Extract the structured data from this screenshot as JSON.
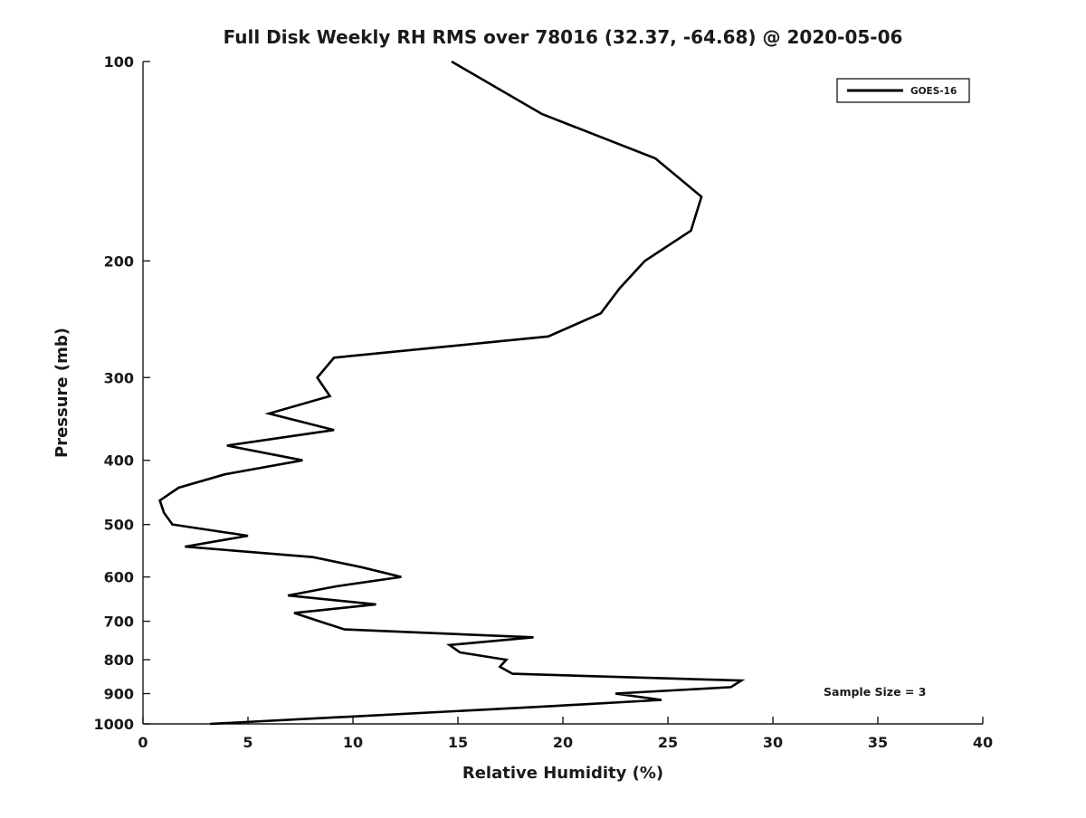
{
  "chart_data": {
    "type": "line",
    "title": "Full Disk Weekly RH RMS over 78016 (32.37, -64.68) @ 2020-05-06",
    "xlabel": "Relative Humidity (%)",
    "ylabel": "Pressure (mb)",
    "xlim": [
      0,
      40
    ],
    "ylim": [
      100,
      1000
    ],
    "x_ticks": [
      0,
      5,
      10,
      15,
      20,
      25,
      30,
      35,
      40
    ],
    "y_ticks": [
      100,
      200,
      300,
      400,
      500,
      600,
      700,
      800,
      900,
      1000
    ],
    "y_scale": "log",
    "y_inverted": true,
    "grid": false,
    "legend_position": "top-right",
    "line_color": "#000000",
    "line_width": 2.6,
    "series": [
      {
        "name": "GOES-16",
        "color": "#000000",
        "points": [
          {
            "pressure": 100,
            "rh": 14.7
          },
          {
            "pressure": 120,
            "rh": 19.0
          },
          {
            "pressure": 140,
            "rh": 24.4
          },
          {
            "pressure": 160,
            "rh": 26.6
          },
          {
            "pressure": 180,
            "rh": 26.1
          },
          {
            "pressure": 200,
            "rh": 23.9
          },
          {
            "pressure": 220,
            "rh": 22.7
          },
          {
            "pressure": 240,
            "rh": 21.8
          },
          {
            "pressure": 260,
            "rh": 19.3
          },
          {
            "pressure": 280,
            "rh": 9.1
          },
          {
            "pressure": 300,
            "rh": 8.3
          },
          {
            "pressure": 320,
            "rh": 8.9
          },
          {
            "pressure": 340,
            "rh": 6.0
          },
          {
            "pressure": 360,
            "rh": 9.1
          },
          {
            "pressure": 380,
            "rh": 4.0
          },
          {
            "pressure": 400,
            "rh": 7.6
          },
          {
            "pressure": 420,
            "rh": 3.9
          },
          {
            "pressure": 440,
            "rh": 1.7
          },
          {
            "pressure": 460,
            "rh": 0.8
          },
          {
            "pressure": 480,
            "rh": 1.0
          },
          {
            "pressure": 500,
            "rh": 1.4
          },
          {
            "pressure": 520,
            "rh": 5.0
          },
          {
            "pressure": 540,
            "rh": 2.0
          },
          {
            "pressure": 560,
            "rh": 8.1
          },
          {
            "pressure": 580,
            "rh": 10.4
          },
          {
            "pressure": 600,
            "rh": 12.3
          },
          {
            "pressure": 620,
            "rh": 9.2
          },
          {
            "pressure": 640,
            "rh": 6.9
          },
          {
            "pressure": 660,
            "rh": 11.1
          },
          {
            "pressure": 680,
            "rh": 7.2
          },
          {
            "pressure": 700,
            "rh": 8.4
          },
          {
            "pressure": 720,
            "rh": 9.6
          },
          {
            "pressure": 740,
            "rh": 18.6
          },
          {
            "pressure": 760,
            "rh": 14.6
          },
          {
            "pressure": 780,
            "rh": 15.1
          },
          {
            "pressure": 800,
            "rh": 17.3
          },
          {
            "pressure": 820,
            "rh": 17.0
          },
          {
            "pressure": 840,
            "rh": 17.6
          },
          {
            "pressure": 860,
            "rh": 28.5
          },
          {
            "pressure": 880,
            "rh": 28.0
          },
          {
            "pressure": 900,
            "rh": 22.5
          },
          {
            "pressure": 920,
            "rh": 24.7
          },
          {
            "pressure": 940,
            "rh": 19.5
          },
          {
            "pressure": 960,
            "rh": 14.0
          },
          {
            "pressure": 980,
            "rh": 8.5
          },
          {
            "pressure": 1000,
            "rh": 3.2
          }
        ]
      }
    ]
  },
  "legend": {
    "label": "GOES-16"
  },
  "annotation": {
    "text": "Sample Size = 3"
  }
}
